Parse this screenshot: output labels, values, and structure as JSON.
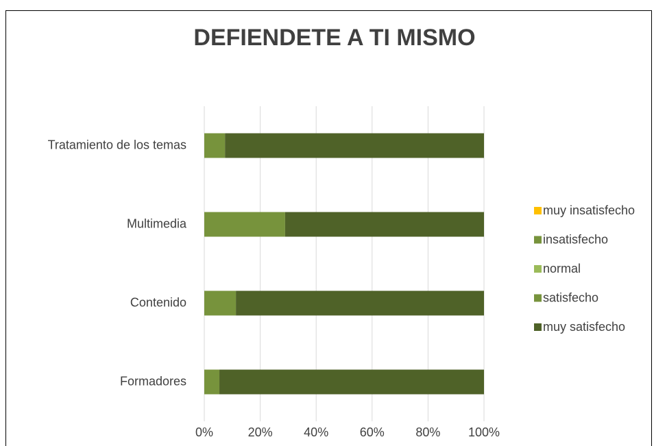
{
  "chart_data": {
    "type": "stacked-bar-horizontal",
    "title": "DEFIENDETE A TI MISMO",
    "categories": [
      "Tratamiento de los temas",
      "Multimedia",
      "Contenido",
      "Formadores"
    ],
    "series": [
      {
        "name": "muy insatisfecho",
        "color": "#ffc000",
        "values": [
          0,
          0,
          0,
          0
        ]
      },
      {
        "name": "insatisfecho",
        "color": "#77933c",
        "values": [
          0,
          0,
          0,
          0
        ]
      },
      {
        "name": "normal",
        "color": "#9bbb59",
        "values": [
          0,
          0,
          0,
          0
        ]
      },
      {
        "name": "satisfecho",
        "color": "#77933c",
        "values": [
          7.4,
          28.9,
          11.3,
          5.4
        ]
      },
      {
        "name": "muy satisfecho",
        "color": "#4f6228",
        "values": [
          92.6,
          71.1,
          88.7,
          94.6
        ]
      }
    ],
    "xlim": [
      0,
      100
    ],
    "xticks": [
      {
        "value": 0,
        "label": "0%"
      },
      {
        "value": 20,
        "label": "20%"
      },
      {
        "value": 40,
        "label": "40%"
      },
      {
        "value": 60,
        "label": "60%"
      },
      {
        "value": 80,
        "label": "80%"
      },
      {
        "value": 100,
        "label": "100%"
      }
    ],
    "grid": true,
    "legend": "right"
  }
}
